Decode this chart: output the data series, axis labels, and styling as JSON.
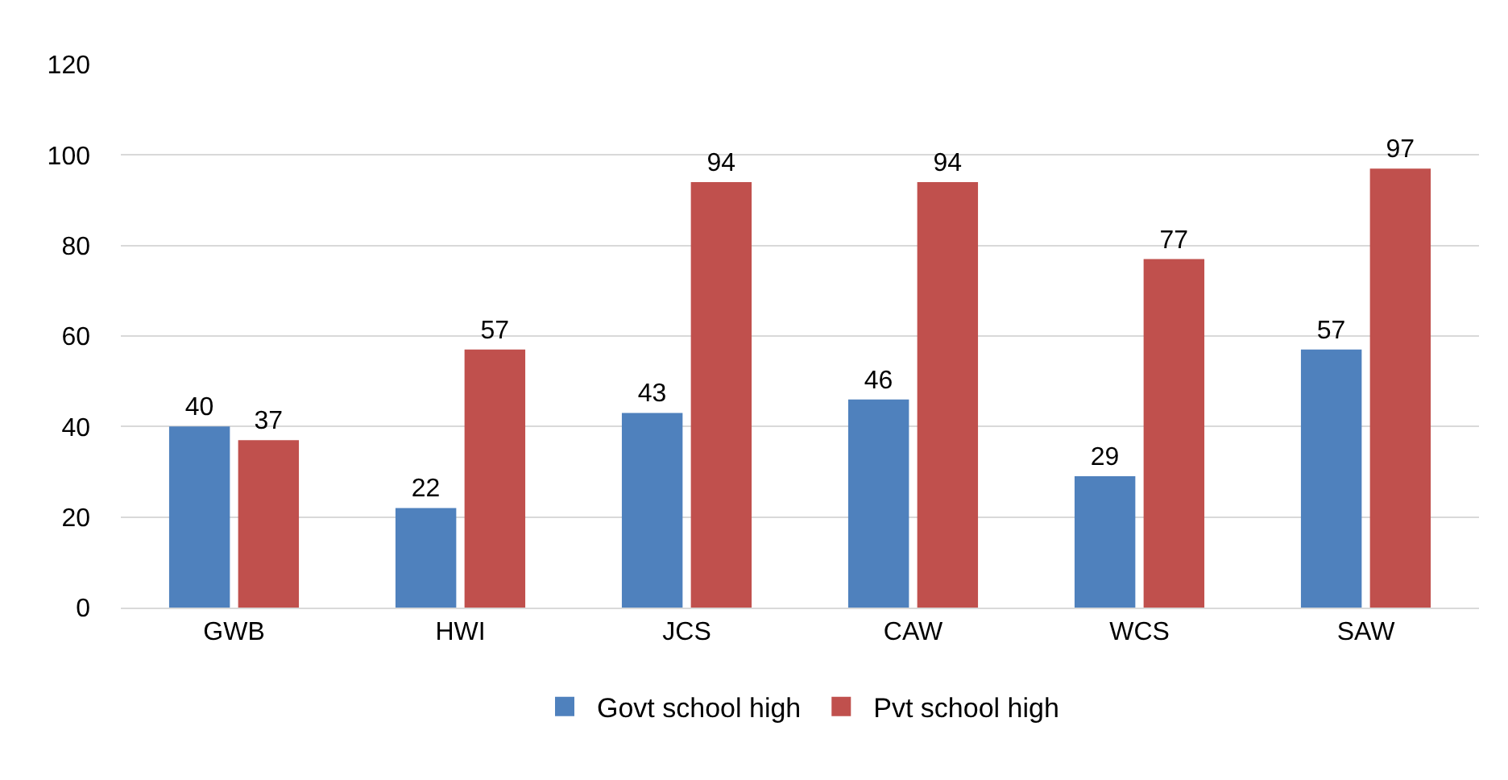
{
  "chart_data": {
    "type": "bar",
    "categories": [
      "GWB",
      "HWI",
      "JCS",
      "CAW",
      "WCS",
      "SAW"
    ],
    "series": [
      {
        "name": "Govt school high",
        "color": "#4f81bd",
        "values": [
          40,
          22,
          43,
          46,
          29,
          57
        ]
      },
      {
        "name": "Pvt school high",
        "color": "#c0504d",
        "values": [
          37,
          57,
          94,
          94,
          77,
          97
        ]
      }
    ],
    "ylim": [
      0,
      120
    ],
    "yticks": [
      0,
      20,
      40,
      60,
      80,
      100,
      120
    ],
    "grid": "y",
    "legend": "bottom",
    "data_labels": true
  }
}
